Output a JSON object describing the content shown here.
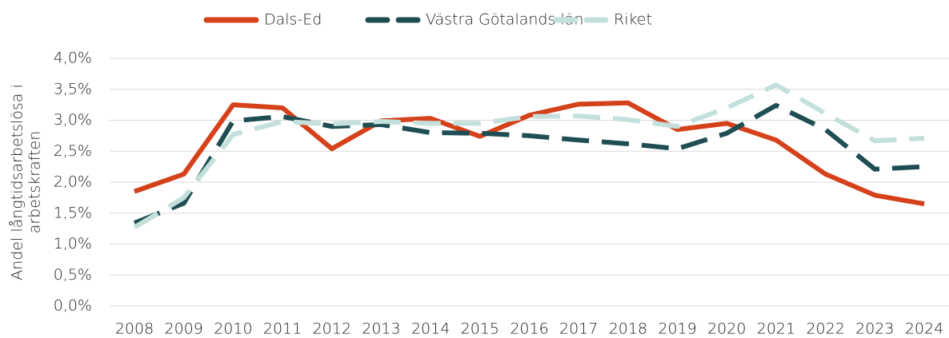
{
  "chart_data": {
    "type": "line",
    "y_label": [
      "Andel långtidsarbetslösa i",
      "arbetskraften"
    ],
    "categories": [
      "2008",
      "2009",
      "2010",
      "2011",
      "2012",
      "2013",
      "2014",
      "2015",
      "2016",
      "2017",
      "2018",
      "2019",
      "2020",
      "2021",
      "2022",
      "2023",
      "2024"
    ],
    "series": [
      {
        "name": "Dals-Ed",
        "color": "#d5411a",
        "style": "solid",
        "values": [
          1.85,
          2.13,
          3.25,
          3.2,
          2.54,
          2.99,
          3.03,
          2.74,
          3.08,
          3.26,
          3.28,
          2.85,
          2.95,
          2.68,
          2.13,
          1.79,
          1.65
        ]
      },
      {
        "name": "Västra Götalands län",
        "color": "#1f4e52",
        "style": "dashed",
        "values": [
          1.34,
          1.66,
          2.99,
          3.06,
          2.9,
          2.93,
          2.8,
          2.79,
          2.75,
          2.68,
          2.62,
          2.54,
          2.79,
          3.24,
          2.85,
          2.21,
          2.25
        ]
      },
      {
        "name": "Riket",
        "color": "#c3e0dc",
        "style": "dashed",
        "values": [
          1.27,
          1.75,
          2.77,
          2.98,
          2.94,
          2.98,
          2.95,
          2.95,
          3.06,
          3.07,
          3.01,
          2.9,
          3.2,
          3.57,
          3.11,
          2.67,
          2.71
        ]
      }
    ],
    "ylim": [
      0,
      4
    ],
    "yticks": [
      {
        "value": 0,
        "label": "0,0%"
      },
      {
        "value": 0.5,
        "label": "0,5%"
      },
      {
        "value": 1,
        "label": "1,0%"
      },
      {
        "value": 1.5,
        "label": "1,5%"
      },
      {
        "value": 2,
        "label": "2,0%"
      },
      {
        "value": 2.5,
        "label": "2,5%"
      },
      {
        "value": 3,
        "label": "3,0%"
      },
      {
        "value": 3.5,
        "label": "3,5%"
      },
      {
        "value": 4,
        "label": "4,0%"
      }
    ],
    "grid": true,
    "legend": "top"
  }
}
